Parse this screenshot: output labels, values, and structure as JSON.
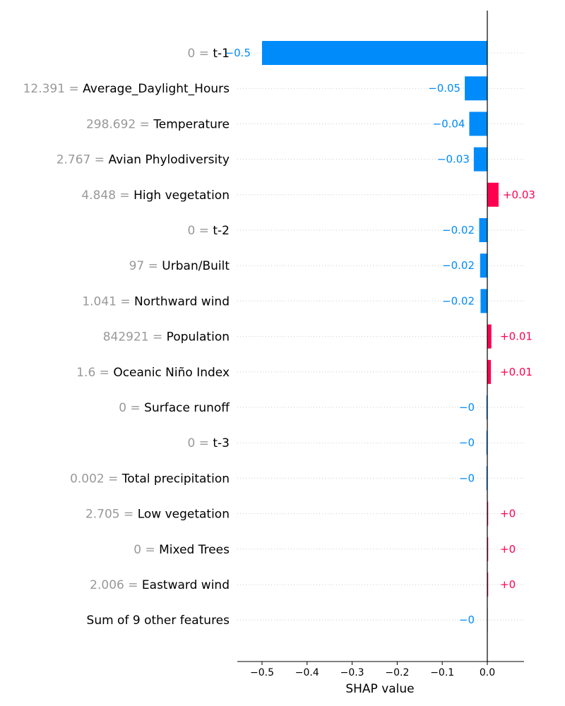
{
  "chart_data": {
    "type": "bar",
    "orientation": "horizontal",
    "xlabel": "SHAP value",
    "xlim": [
      -0.55,
      0.08
    ],
    "xticks": [
      {
        "value": -0.5,
        "label": "−0.5"
      },
      {
        "value": -0.4,
        "label": "−0.4"
      },
      {
        "value": -0.3,
        "label": "−0.3"
      },
      {
        "value": -0.2,
        "label": "−0.2"
      },
      {
        "value": -0.1,
        "label": "−0.1"
      },
      {
        "value": 0.0,
        "label": "0.0"
      }
    ],
    "grid": "horizontal dotted per row",
    "colors": {
      "negative": "#008bfb",
      "positive": "#ff0051",
      "neutral": "#cccccc",
      "feature_value": "#999999",
      "zero_line": "#000000"
    },
    "bars": [
      {
        "feature_value": "0 =",
        "feature": "t-1",
        "value": -0.5,
        "label": "−0.5"
      },
      {
        "feature_value": "12.391 =",
        "feature": "Average_Daylight_Hours",
        "value": -0.05,
        "label": "−0.05"
      },
      {
        "feature_value": "298.692 =",
        "feature": "Temperature",
        "value": -0.04,
        "label": "−0.04"
      },
      {
        "feature_value": "2.767 =",
        "feature": "Avian Phylodiversity",
        "value": -0.03,
        "label": "−0.03"
      },
      {
        "feature_value": "4.848 =",
        "feature": "High vegetation",
        "value": 0.025,
        "label": "+0.03"
      },
      {
        "feature_value": "0 =",
        "feature": "t-2",
        "value": -0.018,
        "label": "−0.02"
      },
      {
        "feature_value": "97 =",
        "feature": "Urban/Built",
        "value": -0.016,
        "label": "−0.02"
      },
      {
        "feature_value": "1.041 =",
        "feature": "Northward wind",
        "value": -0.015,
        "label": "−0.02"
      },
      {
        "feature_value": "842921 =",
        "feature": "Population",
        "value": 0.009,
        "label": "+0.01"
      },
      {
        "feature_value": "1.6 =",
        "feature": "Oceanic Niño Index",
        "value": 0.008,
        "label": "+0.01"
      },
      {
        "feature_value": "0 =",
        "feature": "Surface runoff",
        "value": -0.002,
        "label": "−0"
      },
      {
        "feature_value": "0 =",
        "feature": "t-3",
        "value": -0.002,
        "label": "−0"
      },
      {
        "feature_value": "0.002 =",
        "feature": "Total precipitation",
        "value": -0.002,
        "label": "−0"
      },
      {
        "feature_value": "2.705 =",
        "feature": "Low vegetation",
        "value": 0.001,
        "label": "+0"
      },
      {
        "feature_value": "0 =",
        "feature": "Mixed Trees",
        "value": 0.0005,
        "label": "+0"
      },
      {
        "feature_value": "2.006 =",
        "feature": "Eastward wind",
        "value": 0.0003,
        "label": "+0"
      },
      {
        "feature_value": "",
        "feature": "Sum of 9 other features",
        "value": -0.0005,
        "label": "−0",
        "neutral": true
      }
    ]
  }
}
